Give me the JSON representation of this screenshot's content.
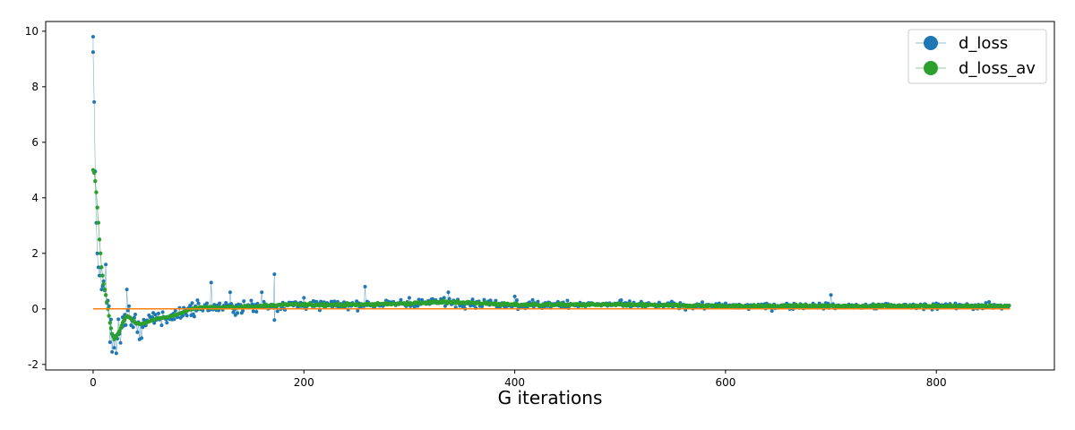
{
  "chart_data": {
    "type": "scatter",
    "title": "",
    "xlabel": "G iterations",
    "ylabel": "",
    "xlim": [
      -45,
      912
    ],
    "ylim": [
      -2.2,
      10.35
    ],
    "xticks": [
      0,
      200,
      400,
      600,
      800
    ],
    "yticks": [
      -2,
      0,
      2,
      4,
      6,
      8,
      10
    ],
    "grid": false,
    "legend_position": "top-right",
    "n_points": 870,
    "series": [
      {
        "name": "d_loss",
        "color": "#1f77b4",
        "marker": "circle",
        "sample_points": [
          [
            0,
            9.8
          ],
          [
            0,
            9.25
          ],
          [
            1,
            7.45
          ],
          [
            2,
            4.95
          ],
          [
            3,
            3.1
          ],
          [
            4,
            2.0
          ],
          [
            5,
            1.5
          ],
          [
            6,
            1.2
          ],
          [
            8,
            0.7
          ],
          [
            10,
            1.0
          ],
          [
            12,
            1.6
          ],
          [
            14,
            0.3
          ],
          [
            16,
            -1.2
          ],
          [
            18,
            -1.55
          ],
          [
            20,
            -1.4
          ],
          [
            22,
            -1.6
          ],
          [
            25,
            -0.9
          ],
          [
            28,
            -0.3
          ],
          [
            32,
            0.7
          ],
          [
            35,
            -0.3
          ],
          [
            40,
            -0.2
          ],
          [
            44,
            -1.1
          ],
          [
            46,
            -1.05
          ],
          [
            50,
            -0.6
          ],
          [
            60,
            -0.4
          ],
          [
            70,
            -0.5
          ],
          [
            80,
            -0.3
          ],
          [
            90,
            0.0
          ],
          [
            100,
            0.2
          ],
          [
            112,
            0.95
          ],
          [
            120,
            0.2
          ],
          [
            130,
            0.6
          ],
          [
            150,
            0.3
          ],
          [
            160,
            0.6
          ],
          [
            172,
            1.25
          ],
          [
            172,
            -0.4
          ],
          [
            200,
            0.4
          ],
          [
            258,
            0.8
          ],
          [
            300,
            0.4
          ],
          [
            337,
            0.6
          ],
          [
            400,
            0.45
          ],
          [
            450,
            0.3
          ],
          [
            500,
            0.3
          ],
          [
            600,
            0.2
          ],
          [
            700,
            0.5
          ],
          [
            800,
            0.2
          ],
          [
            870,
            0.15
          ]
        ]
      },
      {
        "name": "d_loss_av",
        "color": "#2ca02c",
        "marker": "circle",
        "sample_points": [
          [
            0,
            5.0
          ],
          [
            1,
            4.9
          ],
          [
            2,
            4.6
          ],
          [
            3,
            4.2
          ],
          [
            4,
            3.65
          ],
          [
            5,
            3.1
          ],
          [
            6,
            2.5
          ],
          [
            7,
            2.0
          ],
          [
            8,
            1.5
          ],
          [
            9,
            1.2
          ],
          [
            10,
            0.9
          ],
          [
            12,
            0.5
          ],
          [
            14,
            0.0
          ],
          [
            16,
            -0.5
          ],
          [
            18,
            -0.9
          ],
          [
            20,
            -1.1
          ],
          [
            22,
            -1.0
          ],
          [
            25,
            -0.8
          ],
          [
            28,
            -0.5
          ],
          [
            32,
            -0.25
          ],
          [
            36,
            -0.35
          ],
          [
            40,
            -0.5
          ],
          [
            45,
            -0.55
          ],
          [
            50,
            -0.5
          ],
          [
            60,
            -0.35
          ],
          [
            70,
            -0.3
          ],
          [
            80,
            -0.2
          ],
          [
            90,
            -0.05
          ],
          [
            100,
            0.05
          ],
          [
            120,
            0.05
          ],
          [
            140,
            0.05
          ],
          [
            160,
            0.1
          ],
          [
            180,
            0.15
          ],
          [
            200,
            0.15
          ],
          [
            250,
            0.15
          ],
          [
            300,
            0.2
          ],
          [
            340,
            0.25
          ],
          [
            400,
            0.15
          ],
          [
            500,
            0.15
          ],
          [
            600,
            0.1
          ],
          [
            700,
            0.1
          ],
          [
            800,
            0.1
          ],
          [
            870,
            0.1
          ]
        ]
      }
    ],
    "reference_line": {
      "color": "#ff7f0e",
      "x": [
        0,
        870
      ],
      "y": [
        0,
        0
      ]
    }
  }
}
